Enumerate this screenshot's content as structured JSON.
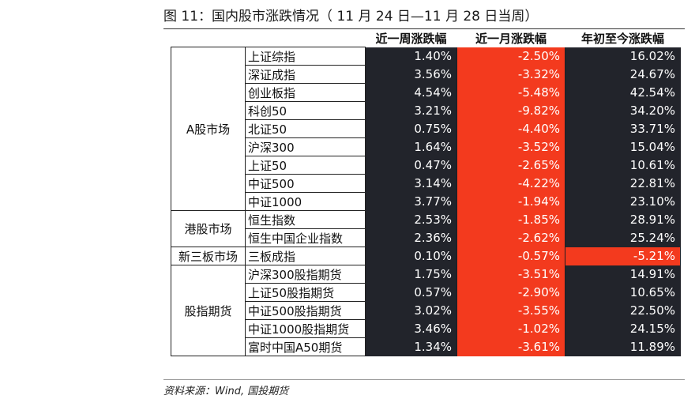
{
  "title": "图 11：国内股市涨跌情况（ 11 月 24 日—11 月 28 日当周）",
  "headers": [
    "",
    "",
    "近一周涨跌幅",
    "近一月涨跌幅",
    "年初至今涨跌幅"
  ],
  "groups": [
    {
      "name": "A股市场",
      "rows": [
        {
          "name": "上证综指",
          "week": "1.40%",
          "month": "-2.50%",
          "ytd": "16.02%"
        },
        {
          "name": "深证成指",
          "week": "3.56%",
          "month": "-3.32%",
          "ytd": "24.67%"
        },
        {
          "name": "创业板指",
          "week": "4.54%",
          "month": "-5.48%",
          "ytd": "42.54%"
        },
        {
          "name": "科创50",
          "week": "3.21%",
          "month": "-9.82%",
          "ytd": "34.20%"
        },
        {
          "name": "北证50",
          "week": "0.75%",
          "month": "-4.40%",
          "ytd": "33.71%"
        },
        {
          "name": "沪深300",
          "week": "1.64%",
          "month": "-3.52%",
          "ytd": "15.04%"
        },
        {
          "name": "上证50",
          "week": "0.47%",
          "month": "-2.65%",
          "ytd": "10.61%"
        },
        {
          "name": "中证500",
          "week": "3.14%",
          "month": "-4.22%",
          "ytd": "22.81%"
        },
        {
          "name": "中证1000",
          "week": "3.77%",
          "month": "-1.94%",
          "ytd": "23.10%"
        }
      ]
    },
    {
      "name": "港股市场",
      "rows": [
        {
          "name": "恒生指数",
          "week": "2.53%",
          "month": "-1.85%",
          "ytd": "28.91%"
        },
        {
          "name": "恒生中国企业指数",
          "week": "2.36%",
          "month": "-2.62%",
          "ytd": "25.24%"
        }
      ]
    },
    {
      "name": "新三板市场",
      "rows": [
        {
          "name": "三板成指",
          "week": "0.10%",
          "month": "-0.57%",
          "ytd": "-5.21%"
        }
      ]
    },
    {
      "name": "股指期货",
      "rows": [
        {
          "name": "沪深300股指期货",
          "week": "1.75%",
          "month": "-3.51%",
          "ytd": "14.91%"
        },
        {
          "name": "上证50股指期货",
          "week": "0.57%",
          "month": "-2.90%",
          "ytd": "10.65%"
        },
        {
          "name": "中证500股指期货",
          "week": "3.02%",
          "month": "-3.55%",
          "ytd": "22.50%"
        },
        {
          "name": "中证1000股指期货",
          "week": "3.46%",
          "month": "-1.02%",
          "ytd": "24.15%"
        },
        {
          "name": "富时中国A50期货",
          "week": "1.34%",
          "month": "-3.61%",
          "ytd": "11.89%"
        }
      ]
    }
  ],
  "colors": {
    "positive_cell": "#22242b",
    "negative_cell": "#f33a1e",
    "text_on_cell": "#ffffff"
  },
  "source": "资料来源：Wind, 国投期货"
}
